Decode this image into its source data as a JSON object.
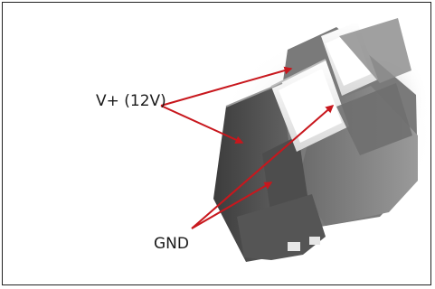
{
  "labels": {
    "vplus": "V+ (12V)",
    "gnd": "GND"
  },
  "colors": {
    "arrow": "#c8171d",
    "terminal_body": "#5e5e5e",
    "terminal_dark": "#3f3f3f",
    "terminal_light": "#8a8a8a",
    "terminal_top": "#f1f1f1"
  },
  "icons": {
    "connector": "screw-terminal-block-icon",
    "arrow": "arrow-icon"
  }
}
